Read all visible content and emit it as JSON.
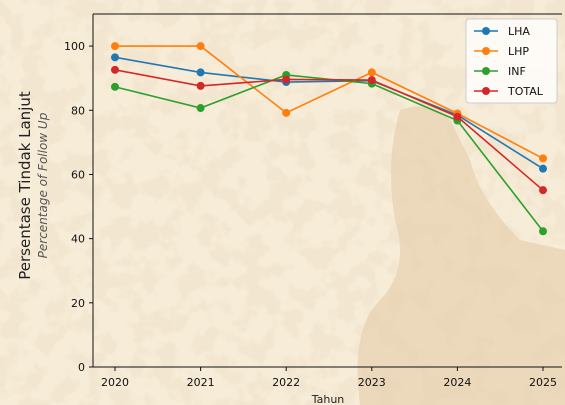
{
  "chart_data": {
    "type": "line",
    "x": [
      "2020",
      "2021",
      "2022",
      "2023",
      "2024",
      "2025"
    ],
    "series": [
      {
        "name": "LHA",
        "color": "#1f77b4",
        "values": [
          96.5,
          91.8,
          88.8,
          89.2,
          78.5,
          61.8
        ]
      },
      {
        "name": "LHP",
        "color": "#ff7f0e",
        "values": [
          100,
          100,
          79.2,
          91.8,
          79.0,
          65.0
        ]
      },
      {
        "name": "INF",
        "color": "#2ca02c",
        "values": [
          87.3,
          80.7,
          91.0,
          88.3,
          76.8,
          42.3
        ]
      },
      {
        "name": "TOTAL",
        "color": "#d62728",
        "values": [
          92.6,
          87.6,
          89.6,
          89.4,
          78.0,
          55.1
        ]
      }
    ],
    "xlabel": "Tahun",
    "ylabel": "Persentase Tindak Lanjut",
    "ylabel_sub": "Percentage of Follow Up",
    "ylim": [
      0,
      110
    ],
    "yticks": [
      "0",
      "20",
      "40",
      "60",
      "80",
      "100"
    ],
    "grid": false,
    "legend_position": "top-right",
    "background_color": "#f6ead4",
    "stain_color": "#e3cba6"
  }
}
